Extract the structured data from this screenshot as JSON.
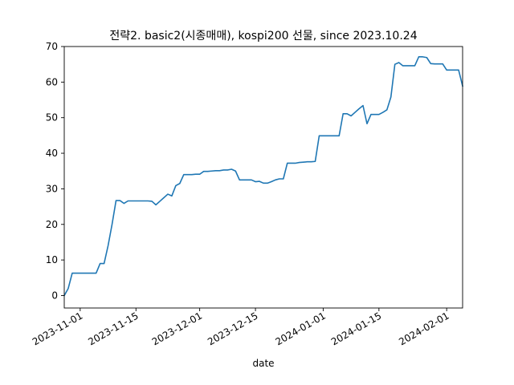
{
  "chart_data": {
    "type": "line",
    "title": "전략2. basic2(시종매매), kospi200 선물, since 2023.10.24",
    "xlabel": "date",
    "ylabel": "",
    "xlim": [
      "2023-10-28",
      "2024-02-05"
    ],
    "ylim": [
      -3.5,
      70
    ],
    "grid": false,
    "line_color": "#1f77b4",
    "x_ticks": [
      {
        "date": "2023-11-01",
        "label": "2023-11-01"
      },
      {
        "date": "2023-11-15",
        "label": "2023-11-15"
      },
      {
        "date": "2023-12-01",
        "label": "2023-12-01"
      },
      {
        "date": "2023-12-15",
        "label": "2023-12-15"
      },
      {
        "date": "2024-01-01",
        "label": "2024-01-01"
      },
      {
        "date": "2024-01-15",
        "label": "2024-01-15"
      },
      {
        "date": "2024-02-01",
        "label": "2024-02-01"
      }
    ],
    "y_ticks": [
      0,
      10,
      20,
      30,
      40,
      50,
      60,
      70
    ],
    "series": [
      {
        "x": [
          "2023-10-28",
          "2023-10-29",
          "2023-10-30",
          "2023-10-31",
          "2023-11-01",
          "2023-11-02",
          "2023-11-03",
          "2023-11-04",
          "2023-11-05",
          "2023-11-06",
          "2023-11-07",
          "2023-11-08",
          "2023-11-09",
          "2023-11-10",
          "2023-11-11",
          "2023-11-12",
          "2023-11-13",
          "2023-11-14",
          "2023-11-15",
          "2023-11-16",
          "2023-11-17",
          "2023-11-18",
          "2023-11-19",
          "2023-11-20",
          "2023-11-21",
          "2023-11-22",
          "2023-11-23",
          "2023-11-24",
          "2023-11-25",
          "2023-11-26",
          "2023-11-27",
          "2023-11-28",
          "2023-11-29",
          "2023-11-30",
          "2023-12-01",
          "2023-12-02",
          "2023-12-03",
          "2023-12-04",
          "2023-12-05",
          "2023-12-06",
          "2023-12-07",
          "2023-12-08",
          "2023-12-09",
          "2023-12-10",
          "2023-12-11",
          "2023-12-12",
          "2023-12-13",
          "2023-12-14",
          "2023-12-15",
          "2023-12-16",
          "2023-12-17",
          "2023-12-18",
          "2023-12-19",
          "2023-12-20",
          "2023-12-21",
          "2023-12-22",
          "2023-12-23",
          "2023-12-24",
          "2023-12-25",
          "2023-12-26",
          "2023-12-27",
          "2023-12-28",
          "2023-12-29",
          "2023-12-30",
          "2023-12-31",
          "2024-01-01",
          "2024-01-02",
          "2024-01-03",
          "2024-01-04",
          "2024-01-05",
          "2024-01-06",
          "2024-01-07",
          "2024-01-08",
          "2024-01-09",
          "2024-01-10",
          "2024-01-11",
          "2024-01-12",
          "2024-01-13",
          "2024-01-14",
          "2024-01-15",
          "2024-01-16",
          "2024-01-17",
          "2024-01-18",
          "2024-01-19",
          "2024-01-20",
          "2024-01-21",
          "2024-01-22",
          "2024-01-23",
          "2024-01-24",
          "2024-01-25",
          "2024-01-26",
          "2024-01-27",
          "2024-01-28",
          "2024-01-29",
          "2024-01-30",
          "2024-01-31",
          "2024-02-01",
          "2024-02-02",
          "2024-02-03",
          "2024-02-04",
          "2024-02-05"
        ],
        "y": [
          0.0,
          2.0,
          6.3,
          6.3,
          6.3,
          6.3,
          6.3,
          6.3,
          6.3,
          9.0,
          9.0,
          14.0,
          20.0,
          26.7,
          26.7,
          25.9,
          26.6,
          26.6,
          26.6,
          26.6,
          26.6,
          26.6,
          26.5,
          25.5,
          26.5,
          27.5,
          28.5,
          28.0,
          30.9,
          31.5,
          34.0,
          34.0,
          34.0,
          34.1,
          34.1,
          34.9,
          34.9,
          35.0,
          35.1,
          35.1,
          35.3,
          35.3,
          35.5,
          35.0,
          32.5,
          32.5,
          32.5,
          32.5,
          32.0,
          32.1,
          31.6,
          31.6,
          32.0,
          32.5,
          32.8,
          32.8,
          37.2,
          37.2,
          37.2,
          37.4,
          37.5,
          37.6,
          37.6,
          37.7,
          44.9,
          44.9,
          44.9,
          44.9,
          44.9,
          44.9,
          51.1,
          51.1,
          50.5,
          51.5,
          52.5,
          53.4,
          48.3,
          50.9,
          50.9,
          50.9,
          51.5,
          52.2,
          55.8,
          65.0,
          65.5,
          64.6,
          64.6,
          64.6,
          64.6,
          67.1,
          67.1,
          66.9,
          65.2,
          65.1,
          65.1,
          65.1,
          63.4,
          63.4,
          63.4,
          63.4,
          58.9
        ]
      }
    ]
  }
}
